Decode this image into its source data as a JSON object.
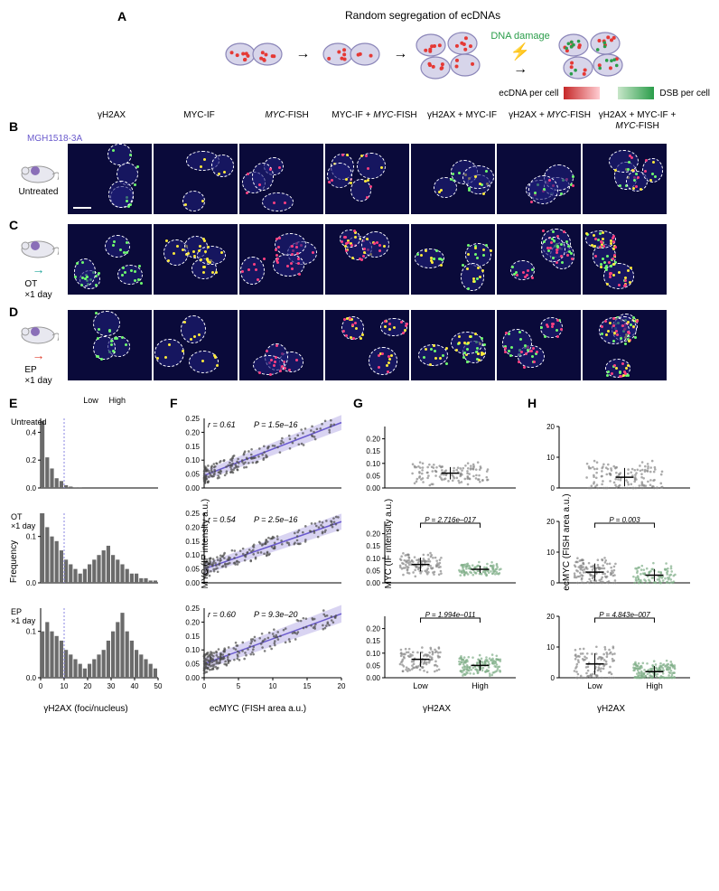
{
  "panelA": {
    "title": "Random segregation of ecDNAs",
    "dnaDamage": "DNA damage",
    "legend": {
      "left": {
        "label": "ecDNA per cell",
        "grad_from": "#c62828",
        "grad_to": "#ffcdd2"
      },
      "right": {
        "label": "DSB per cell",
        "grad_from": "#c8e6c9",
        "grad_to": "#2a9d4a"
      }
    },
    "colors": {
      "cell_fill": "#d7d5ea",
      "cell_stroke": "#8a85b8",
      "ecdna": "#e53935",
      "dsb": "#2a9d4a"
    }
  },
  "microHeaders": [
    "γH2AX",
    "MYC-IF",
    "MYC-FISH",
    "MYC-IF + MYC-FISH",
    "γH2AX + MYC-IF",
    "γH2AX + MYC-FISH",
    "γH2AX + MYC-IF + MYC-FISH"
  ],
  "model": "MGH1518-3A",
  "rows": {
    "B": {
      "treatment": "Untreated",
      "arrow_color": "#8a85b8"
    },
    "C": {
      "treatment": "OT ×1 day",
      "arrow_color": "#1fa59a"
    },
    "D": {
      "treatment": "EP ×1 day",
      "arrow_color": "#e03e2d"
    }
  },
  "panelE": {
    "xlabel": "γH2AX (foci/nucleus)",
    "ylabel": "Frequency",
    "lowHigh": {
      "low": "Low",
      "high": "High"
    },
    "threshold_x": 10,
    "xlim": [
      0,
      50
    ],
    "xtick_step": 10,
    "bar_color": "#6b6b6b",
    "subplots": [
      {
        "treatment": "Untreated",
        "ylim": [
          0,
          0.5
        ],
        "ytick_step": 0.2,
        "bins": [
          0.48,
          0.22,
          0.14,
          0.07,
          0.05,
          0.02,
          0.01,
          0.005,
          0.005,
          0,
          0,
          0,
          0,
          0,
          0,
          0,
          0,
          0,
          0,
          0,
          0,
          0,
          0,
          0,
          0
        ]
      },
      {
        "treatment": "OT ×1 day",
        "ylim": [
          0,
          0.15
        ],
        "ytick_step": 0.1,
        "bins": [
          0.15,
          0.12,
          0.1,
          0.09,
          0.07,
          0.05,
          0.04,
          0.03,
          0.02,
          0.03,
          0.04,
          0.05,
          0.06,
          0.07,
          0.08,
          0.06,
          0.05,
          0.04,
          0.03,
          0.02,
          0.02,
          0.01,
          0.01,
          0.005,
          0.005
        ]
      },
      {
        "treatment": "EP ×1 day",
        "ylim": [
          0,
          0.15
        ],
        "ytick_step": 0.1,
        "bins": [
          0.1,
          0.12,
          0.1,
          0.09,
          0.08,
          0.06,
          0.05,
          0.04,
          0.03,
          0.02,
          0.03,
          0.04,
          0.05,
          0.06,
          0.08,
          0.1,
          0.12,
          0.14,
          0.1,
          0.08,
          0.06,
          0.05,
          0.04,
          0.03,
          0.02
        ]
      }
    ]
  },
  "panelF": {
    "xlabel": "ecMYC (FISH area a.u.)",
    "ylabel": "MYC (IF intensity a.u.)",
    "xlim": [
      0,
      20
    ],
    "xtick_step": 5,
    "ylim": [
      0,
      0.25
    ],
    "ytick_step": 0.1,
    "point_color": "#4a4a4a",
    "line_color": "#6a5acd",
    "ci_color": "#b3a9e6",
    "subplots": [
      {
        "r": 0.61,
        "r_text": "r = 0.61",
        "p": "P = 1.5e–16",
        "slope": 0.0095,
        "intercept": 0.045,
        "n_points": 180,
        "spread": 0.03
      },
      {
        "r": 0.54,
        "r_text": "r = 0.54",
        "p": "P = 2.5e–16",
        "slope": 0.0085,
        "intercept": 0.05,
        "n_points": 200,
        "spread": 0.032
      },
      {
        "r": 0.6,
        "r_text": "r = 0.60",
        "p": "P = 9.3e–20",
        "slope": 0.009,
        "intercept": 0.05,
        "n_points": 220,
        "spread": 0.035
      }
    ]
  },
  "panelG": {
    "xlabel": "γH2AX",
    "ylabel": "MYC (IF intensity a.u.)",
    "ylim": [
      0,
      0.25
    ],
    "ytick_step": 0.1,
    "categories": [
      "Low",
      "High"
    ],
    "low_color": "#888888",
    "high_color": "#7fae88",
    "subplots": [
      {
        "p": null,
        "low": {
          "mean": 0.06,
          "sd": 0.025,
          "n": 120
        },
        "high": null
      },
      {
        "p": "P = 2.716e–017",
        "low": {
          "mean": 0.075,
          "sd": 0.028,
          "n": 110
        },
        "high": {
          "mean": 0.055,
          "sd": 0.015,
          "n": 100
        }
      },
      {
        "p": "P = 1.994e–011",
        "low": {
          "mean": 0.075,
          "sd": 0.03,
          "n": 100
        },
        "high": {
          "mean": 0.05,
          "sd": 0.022,
          "n": 140
        }
      }
    ]
  },
  "panelH": {
    "xlabel": "γH2AX",
    "ylabel": "ecMYC (FISH area a.u.)",
    "ylim": [
      0,
      20
    ],
    "ytick_step": 10,
    "categories": [
      "Low",
      "High"
    ],
    "low_color": "#888888",
    "high_color": "#7fae88",
    "subplots": [
      {
        "p": null,
        "low": {
          "mean": 3.5,
          "sd": 3.0,
          "n": 130
        },
        "high": null
      },
      {
        "p": "P = 0.003",
        "low": {
          "mean": 3.5,
          "sd": 2.8,
          "n": 120
        },
        "high": {
          "mean": 2.5,
          "sd": 2.0,
          "n": 90
        }
      },
      {
        "p": "P = 4.843e–007",
        "low": {
          "mean": 4.5,
          "sd": 3.5,
          "n": 100
        },
        "high": {
          "mean": 2.0,
          "sd": 1.8,
          "n": 160
        }
      }
    ]
  }
}
